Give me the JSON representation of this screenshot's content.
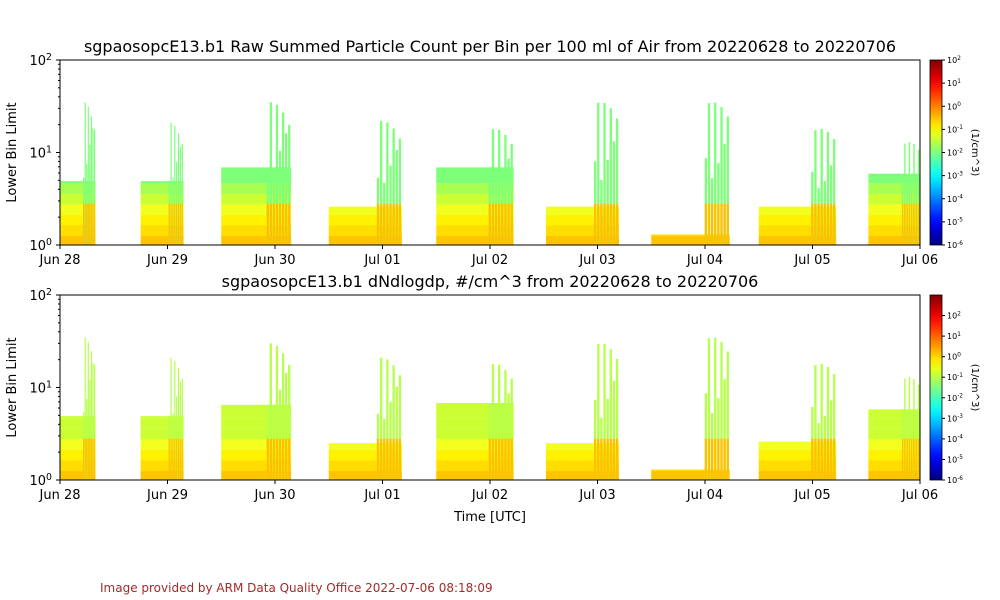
{
  "chart_data": [
    {
      "type": "heatmap",
      "title": "sgpaosopcE13.b1 Raw Summed Particle Count per Bin per 100 ml of Air from 20220628 to 20220706",
      "xlabel": "",
      "ylabel": "Lower Bin Limit",
      "x_ticks": [
        "Jun 28",
        "Jun 29",
        "Jun 30",
        "Jul 01",
        "Jul 02",
        "Jul 03",
        "Jul 04",
        "Jul 05",
        "Jul 06"
      ],
      "y_scale": "log",
      "ylim": [
        1,
        100
      ],
      "y_ticks": [
        "10^0",
        "10^1",
        "10^2"
      ],
      "colorbar": {
        "label": "(1/cm^3)",
        "scale": "log",
        "range": [
          1e-06,
          100
        ],
        "ticks": [
          "10^-6",
          "10^-5",
          "10^-4",
          "10^-3",
          "10^-2",
          "10^-1",
          "10^0",
          "10^1",
          "10^2"
        ],
        "colormap": "jet"
      },
      "blocks": [
        {
          "start_day": 0.0,
          "end_day": 0.33,
          "top_bin": 4.9,
          "peak_bin": 35
        },
        {
          "start_day": 0.75,
          "end_day": 1.15,
          "top_bin": 4.9,
          "peak_bin": 21
        },
        {
          "start_day": 1.5,
          "end_day": 2.15,
          "top_bin": 6.9,
          "peak_bin": 35
        },
        {
          "start_day": 2.5,
          "end_day": 3.18,
          "top_bin": 2.6,
          "peak_bin": 22
        },
        {
          "start_day": 3.5,
          "end_day": 4.22,
          "top_bin": 6.9,
          "peak_bin": 18
        },
        {
          "start_day": 4.52,
          "end_day": 5.2,
          "top_bin": 2.6,
          "peak_bin": 35
        },
        {
          "start_day": 5.5,
          "end_day": 6.23,
          "top_bin": 1.3,
          "peak_bin": 35
        },
        {
          "start_day": 6.5,
          "end_day": 7.22,
          "top_bin": 2.6,
          "peak_bin": 18
        },
        {
          "start_day": 7.52,
          "end_day": 8.0,
          "top_bin": 5.9,
          "peak_bin": 13
        }
      ]
    },
    {
      "type": "heatmap",
      "title": "sgpaosopcE13.b1 dNdlogdp, #/cm^3 from 20220628 to 20220706",
      "xlabel": "Time [UTC]",
      "ylabel": "Lower Bin Limit",
      "x_ticks": [
        "Jun 28",
        "Jun 29",
        "Jun 30",
        "Jul 01",
        "Jul 02",
        "Jul 03",
        "Jul 04",
        "Jul 05",
        "Jul 06"
      ],
      "y_scale": "log",
      "ylim": [
        1,
        100
      ],
      "y_ticks": [
        "10^0",
        "10^1",
        "10^2"
      ],
      "colorbar": {
        "label": "(1/cm^3)",
        "scale": "log",
        "range": [
          1e-06,
          1000
        ],
        "ticks": [
          "10^-6",
          "10^-5",
          "10^-4",
          "10^-3",
          "10^-2",
          "10^-1",
          "10^0",
          "10^1",
          "10^2"
        ],
        "colormap": "jet"
      },
      "blocks": [
        {
          "start_day": 0.0,
          "end_day": 0.33,
          "top_bin": 4.9,
          "peak_bin": 35
        },
        {
          "start_day": 0.75,
          "end_day": 1.15,
          "top_bin": 4.9,
          "peak_bin": 21
        },
        {
          "start_day": 1.5,
          "end_day": 2.15,
          "top_bin": 6.5,
          "peak_bin": 30
        },
        {
          "start_day": 2.5,
          "end_day": 3.18,
          "top_bin": 2.5,
          "peak_bin": 21
        },
        {
          "start_day": 3.5,
          "end_day": 4.22,
          "top_bin": 6.8,
          "peak_bin": 18
        },
        {
          "start_day": 4.52,
          "end_day": 5.2,
          "top_bin": 2.5,
          "peak_bin": 30
        },
        {
          "start_day": 5.5,
          "end_day": 6.23,
          "top_bin": 1.3,
          "peak_bin": 35
        },
        {
          "start_day": 6.5,
          "end_day": 7.22,
          "top_bin": 2.6,
          "peak_bin": 18
        },
        {
          "start_day": 7.52,
          "end_day": 8.0,
          "top_bin": 5.8,
          "peak_bin": 13
        }
      ]
    }
  ],
  "footer": {
    "credit": "Image provided by ARM Data Quality Office 2022-07-06 08:18:09",
    "credit_color": "#a52a2a"
  }
}
